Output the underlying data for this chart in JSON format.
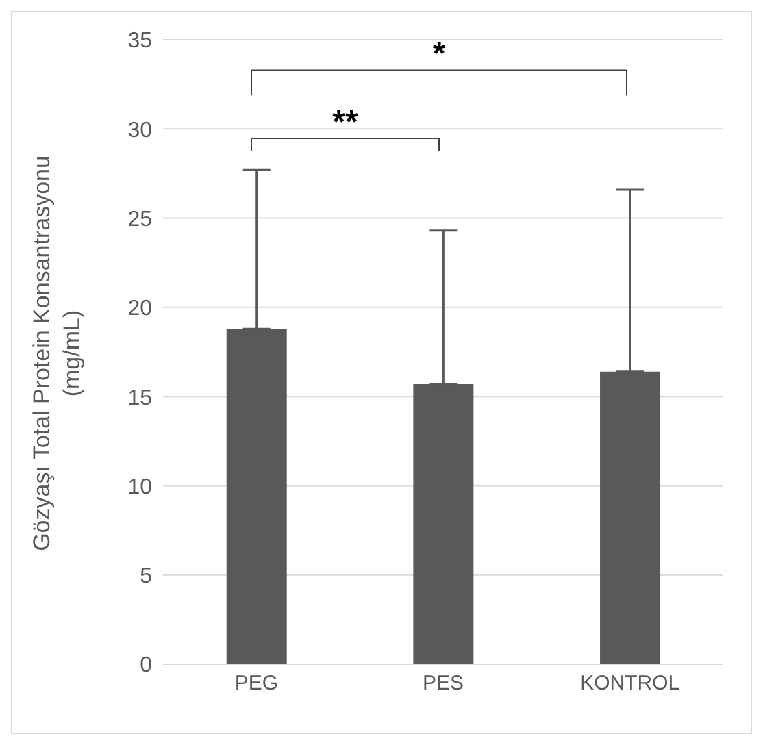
{
  "chart_data": {
    "type": "bar",
    "ylabel": "Gözyaşı Total Protein Konsantrasyonu (mg/mL)",
    "categories": [
      "PEG",
      "PES",
      "KONTROL"
    ],
    "values": [
      18.8,
      15.7,
      16.4
    ],
    "errors": [
      [
        18.8,
        27.7
      ],
      [
        15.7,
        24.3
      ],
      [
        16.4,
        26.6
      ]
    ],
    "color": "#595959",
    "ylim": [
      0,
      35
    ],
    "yticks": [
      0,
      5,
      10,
      15,
      20,
      25,
      30,
      35
    ],
    "grid": "y",
    "annotations": [
      "**",
      "*"
    ]
  }
}
